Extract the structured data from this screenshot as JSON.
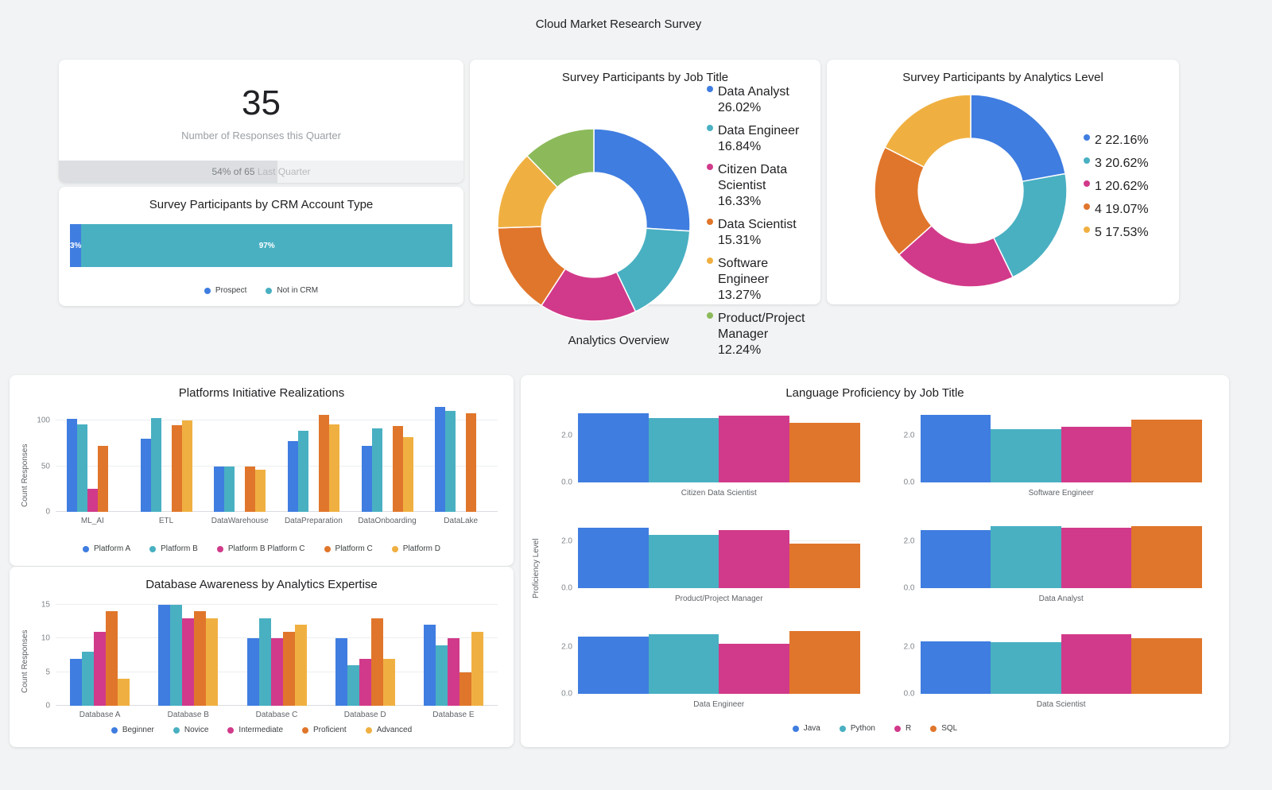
{
  "page": {
    "title": "Cloud Market Research Survey",
    "section_title": "Analytics Overview"
  },
  "colors": {
    "blue": "#3F7DE0",
    "teal": "#49B0C2",
    "magenta": "#D13A8A",
    "orange": "#E0762B",
    "amber": "#F0B041",
    "green": "#8CBA5B"
  },
  "scorecard": {
    "value": "35",
    "label": "Number of Responses this Quarter",
    "progress_pct": 54,
    "progress_strong": "54% of 65",
    "progress_rest": " Last Quarter"
  },
  "chart_data": [
    {
      "id": "crm",
      "type": "bar",
      "orientation": "horizontal-stacked",
      "title": "Survey Participants by CRM Account Type",
      "segments": [
        {
          "label": "Prospect",
          "value": 3,
          "text": "3%",
          "color": "blue"
        },
        {
          "label": "Not in CRM",
          "value": 97,
          "text": "97%",
          "color": "teal"
        }
      ],
      "legend_items": [
        {
          "label": "Prospect",
          "color": "blue"
        },
        {
          "label": "Not in CRM",
          "color": "teal"
        }
      ]
    },
    {
      "id": "job_title",
      "type": "pie",
      "title": "Survey Participants by Job Title",
      "slices": [
        {
          "label": "Data Analyst",
          "pct": 26.02,
          "color": "blue"
        },
        {
          "label": "Data Engineer",
          "pct": 16.84,
          "color": "teal"
        },
        {
          "label": "Citizen Data Scientist",
          "pct": 16.33,
          "color": "magenta"
        },
        {
          "label": "Data Scientist",
          "pct": 15.31,
          "color": "orange"
        },
        {
          "label": "Software Engineer",
          "pct": 13.27,
          "color": "amber"
        },
        {
          "label": "Product/Project Manager",
          "pct": 12.24,
          "color": "green"
        }
      ],
      "legend_items": [
        {
          "label": "Data Analyst 26.02%",
          "color": "blue"
        },
        {
          "label": "Data Engineer 16.84%",
          "color": "teal"
        },
        {
          "label": "Citizen Data Scientist 16.33%",
          "color": "magenta"
        },
        {
          "label": "Data Scientist 15.31%",
          "color": "orange"
        },
        {
          "label": "Software Engineer 13.27%",
          "color": "amber"
        },
        {
          "label": "Product/Project Manager 12.24%",
          "color": "green"
        }
      ]
    },
    {
      "id": "analytics_level",
      "type": "pie",
      "title": "Survey Participants by Analytics Level",
      "slices": [
        {
          "label": "2",
          "pct": 22.16,
          "color": "blue"
        },
        {
          "label": "3",
          "pct": 20.62,
          "color": "teal"
        },
        {
          "label": "1",
          "pct": 20.62,
          "color": "magenta"
        },
        {
          "label": "4",
          "pct": 19.07,
          "color": "orange"
        },
        {
          "label": "5",
          "pct": 17.53,
          "color": "amber"
        }
      ],
      "legend_items": [
        {
          "label": "2 22.16%",
          "color": "blue"
        },
        {
          "label": "3 20.62%",
          "color": "teal"
        },
        {
          "label": "1 20.62%",
          "color": "magenta"
        },
        {
          "label": "4 19.07%",
          "color": "orange"
        },
        {
          "label": "5 17.53%",
          "color": "amber"
        }
      ]
    },
    {
      "id": "platforms",
      "type": "bar",
      "title": "Platforms Initiative Realizations",
      "ylabel": "Count Responses",
      "ymax": 116,
      "yticks": [
        0,
        50,
        100
      ],
      "ytick_labels": [
        "0",
        "50",
        "100"
      ],
      "categories": [
        "ML_AI",
        "ETL",
        "DataWarehouse",
        "DataPreparation",
        "DataOnboarding",
        "DataLake"
      ],
      "series": [
        {
          "name": "Platform A",
          "color": "blue",
          "values": [
            102,
            80,
            50,
            78,
            72,
            115
          ]
        },
        {
          "name": "Platform B",
          "color": "teal",
          "values": [
            96,
            103,
            50,
            89,
            92,
            111
          ]
        },
        {
          "name": "Platform B Platform C",
          "color": "magenta",
          "values": [
            25,
            0,
            0,
            0,
            0,
            0
          ]
        },
        {
          "name": "Platform C",
          "color": "orange",
          "values": [
            72,
            95,
            50,
            106,
            94,
            108
          ]
        },
        {
          "name": "Platform D",
          "color": "amber",
          "values": [
            0,
            100,
            46,
            96,
            82,
            0
          ]
        }
      ],
      "legend_items": [
        {
          "label": "Platform A",
          "color": "blue"
        },
        {
          "label": "Platform B",
          "color": "teal"
        },
        {
          "label": "Platform B Platform C",
          "color": "magenta"
        },
        {
          "label": "Platform C",
          "color": "orange"
        },
        {
          "label": "Platform D",
          "color": "amber"
        }
      ]
    },
    {
      "id": "database",
      "type": "bar",
      "title": "Database Awareness by Analytics Expertise",
      "ylabel": "Count Responses",
      "ymax": 16,
      "yticks": [
        0,
        5,
        10,
        15
      ],
      "ytick_labels": [
        "0",
        "5",
        "10",
        "15"
      ],
      "categories": [
        "Database A",
        "Database B",
        "Database C",
        "Database D",
        "Database E"
      ],
      "series": [
        {
          "name": "Beginner",
          "color": "blue",
          "values": [
            7,
            15,
            10,
            10,
            12
          ]
        },
        {
          "name": "Novice",
          "color": "teal",
          "values": [
            8,
            15,
            13,
            6,
            9
          ]
        },
        {
          "name": "Intermediate",
          "color": "magenta",
          "values": [
            11,
            13,
            10,
            7,
            10
          ]
        },
        {
          "name": "Proficient",
          "color": "orange",
          "values": [
            14,
            14,
            11,
            13,
            5
          ]
        },
        {
          "name": "Advanced",
          "color": "amber",
          "values": [
            4,
            13,
            12,
            7,
            11
          ]
        }
      ],
      "legend_items": [
        {
          "label": "Beginner",
          "color": "blue"
        },
        {
          "label": "Novice",
          "color": "teal"
        },
        {
          "label": "Intermediate",
          "color": "magenta"
        },
        {
          "label": "Proficient",
          "color": "orange"
        },
        {
          "label": "Advanced",
          "color": "amber"
        }
      ]
    },
    {
      "id": "language",
      "type": "bar",
      "title": "Language Proficiency by Job Title",
      "ylabel": "Proficiency Level",
      "ymax": 3,
      "yticks": [
        0,
        2
      ],
      "ytick_labels": [
        "0.0",
        "2.0"
      ],
      "series_names": [
        "Java",
        "Python",
        "R",
        "SQL"
      ],
      "series_colors": [
        "blue",
        "teal",
        "magenta",
        "orange"
      ],
      "subplots": [
        {
          "title": "Citizen Data Scientist",
          "values": [
            2.95,
            2.75,
            2.85,
            2.55
          ]
        },
        {
          "title": "Software Engineer",
          "values": [
            2.9,
            2.3,
            2.4,
            2.7
          ]
        },
        {
          "title": "Product/Project Manager",
          "values": [
            2.6,
            2.3,
            2.5,
            1.9
          ]
        },
        {
          "title": "Data Analyst",
          "values": [
            2.5,
            2.65,
            2.6,
            2.65
          ]
        },
        {
          "title": "Data Engineer",
          "values": [
            2.45,
            2.55,
            2.15,
            2.7
          ]
        },
        {
          "title": "Data Scientist",
          "values": [
            2.25,
            2.2,
            2.55,
            2.4
          ]
        }
      ],
      "legend_items": [
        {
          "label": "Java",
          "color": "blue"
        },
        {
          "label": "Python",
          "color": "teal"
        },
        {
          "label": "R",
          "color": "magenta"
        },
        {
          "label": "SQL",
          "color": "orange"
        }
      ]
    }
  ]
}
